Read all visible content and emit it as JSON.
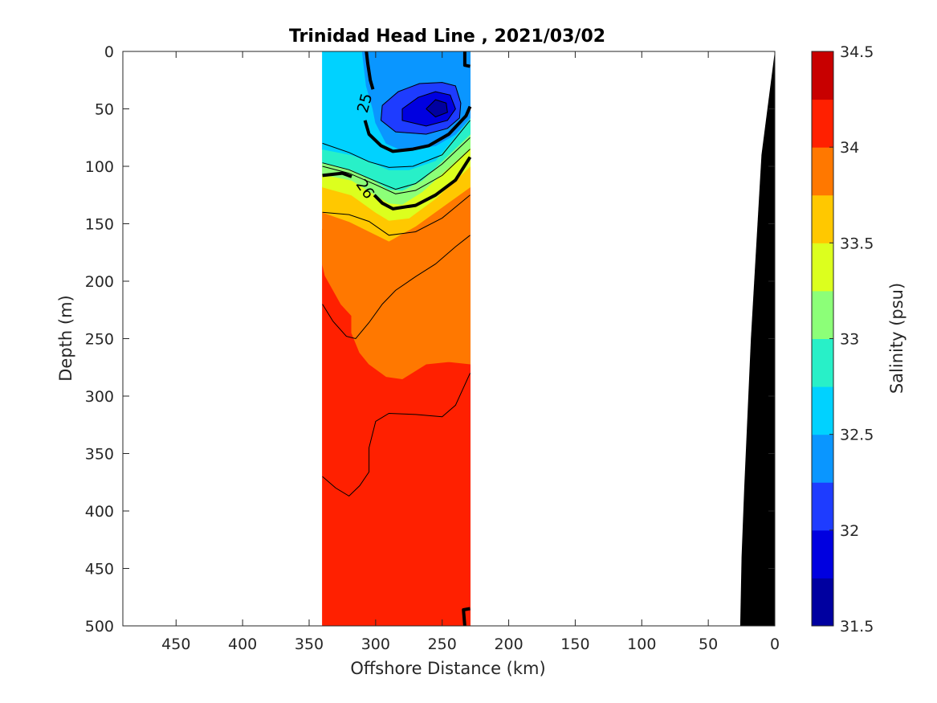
{
  "chart_data": {
    "type": "contour",
    "title": "Trinidad Head Line , 2021/03/02",
    "xlabel": "Offshore Distance (km)",
    "ylabel": "Depth (m)",
    "xlim": [
      490,
      0
    ],
    "ylim": [
      0,
      500
    ],
    "x_reversed": true,
    "y_reversed": true,
    "x_ticks": [
      450,
      400,
      350,
      300,
      250,
      200,
      150,
      100,
      50,
      0
    ],
    "y_ticks": [
      0,
      50,
      100,
      150,
      200,
      250,
      300,
      350,
      400,
      450,
      500
    ],
    "data_extent_x": [
      340,
      229
    ],
    "colorbar": {
      "label": "Salinity (psu)",
      "range": [
        31.5,
        34.5
      ],
      "step": 0.25,
      "ticks": [
        31.5,
        32,
        32.5,
        33,
        33.5,
        34,
        34.5
      ],
      "colors": [
        "#0000a0",
        "#0000e0",
        "#1e3cff",
        "#0a96ff",
        "#00d2ff",
        "#28f0c8",
        "#8cff78",
        "#dcff1e",
        "#ffc800",
        "#ff7800",
        "#ff2000",
        "#c80000"
      ]
    },
    "density_contour_labels": [
      {
        "value": "25",
        "x": 308,
        "y": 45,
        "angle": -75
      },
      {
        "value": "26",
        "x": 308,
        "y": 120,
        "angle": 55
      }
    ],
    "salinity_regions": [
      {
        "value": 34.125,
        "points": [
          [
            340,
            155
          ],
          [
            229,
            155
          ],
          [
            229,
            500
          ],
          [
            340,
            500
          ]
        ]
      },
      {
        "value": 33.875,
        "points": [
          [
            340,
            140
          ],
          [
            320,
            148
          ],
          [
            290,
            158
          ],
          [
            270,
            152
          ],
          [
            229,
            118
          ],
          [
            229,
            272
          ],
          [
            245,
            270
          ],
          [
            262,
            272
          ],
          [
            280,
            285
          ],
          [
            292,
            283
          ],
          [
            305,
            272
          ],
          [
            312,
            262
          ],
          [
            318,
            245
          ],
          [
            318,
            230
          ],
          [
            326,
            220
          ],
          [
            338,
            195
          ],
          [
            340,
            185
          ]
        ]
      },
      {
        "value": 33.625,
        "points": [
          [
            340,
            118
          ],
          [
            318,
            125
          ],
          [
            300,
            140
          ],
          [
            290,
            147
          ],
          [
            275,
            145
          ],
          [
            255,
            128
          ],
          [
            229,
            100
          ],
          [
            229,
            118
          ],
          [
            270,
            152
          ],
          [
            290,
            165
          ],
          [
            320,
            148
          ],
          [
            340,
            140
          ]
        ]
      },
      {
        "value": 33.375,
        "points": [
          [
            340,
            107
          ],
          [
            318,
            112
          ],
          [
            300,
            125
          ],
          [
            290,
            132
          ],
          [
            280,
            133
          ],
          [
            265,
            122
          ],
          [
            229,
            84
          ],
          [
            229,
            100
          ],
          [
            255,
            128
          ],
          [
            275,
            145
          ],
          [
            290,
            147
          ],
          [
            300,
            140
          ],
          [
            318,
            125
          ],
          [
            340,
            118
          ]
        ]
      },
      {
        "value": 33.125,
        "points": [
          [
            340,
            97
          ],
          [
            318,
            103
          ],
          [
            300,
            113
          ],
          [
            290,
            120
          ],
          [
            280,
            121
          ],
          [
            265,
            112
          ],
          [
            229,
            72
          ],
          [
            229,
            84
          ],
          [
            265,
            122
          ],
          [
            280,
            133
          ],
          [
            290,
            132
          ],
          [
            300,
            125
          ],
          [
            318,
            112
          ],
          [
            340,
            107
          ]
        ]
      },
      {
        "value": 32.875,
        "points": [
          [
            340,
            85
          ],
          [
            318,
            90
          ],
          [
            300,
            98
          ],
          [
            290,
            103
          ],
          [
            275,
            103
          ],
          [
            255,
            95
          ],
          [
            229,
            58
          ],
          [
            229,
            72
          ],
          [
            265,
            112
          ],
          [
            280,
            121
          ],
          [
            290,
            120
          ],
          [
            300,
            113
          ],
          [
            318,
            103
          ],
          [
            340,
            97
          ]
        ]
      },
      {
        "value": 32.625,
        "points": [
          [
            340,
            0
          ],
          [
            310,
            0
          ],
          [
            307,
            30
          ],
          [
            302,
            50
          ],
          [
            300,
            62
          ],
          [
            292,
            80
          ],
          [
            280,
            86
          ],
          [
            255,
            82
          ],
          [
            240,
            72
          ],
          [
            229,
            58
          ],
          [
            255,
            95
          ],
          [
            275,
            103
          ],
          [
            290,
            103
          ],
          [
            300,
            98
          ],
          [
            318,
            90
          ],
          [
            340,
            85
          ]
        ]
      },
      {
        "value": 32.375,
        "points": [
          [
            310,
            0
          ],
          [
            229,
            0
          ],
          [
            229,
            58
          ],
          [
            240,
            72
          ],
          [
            255,
            82
          ],
          [
            280,
            86
          ],
          [
            292,
            80
          ],
          [
            300,
            62
          ],
          [
            302,
            50
          ],
          [
            307,
            30
          ]
        ]
      },
      {
        "value": 32.125,
        "points": [
          [
            295,
            47
          ],
          [
            283,
            35
          ],
          [
            267,
            28
          ],
          [
            250,
            27
          ],
          [
            240,
            30
          ],
          [
            236,
            45
          ],
          [
            237,
            58
          ],
          [
            246,
            67
          ],
          [
            262,
            72
          ],
          [
            285,
            70
          ],
          [
            296,
            60
          ]
        ]
      },
      {
        "value": 31.875,
        "points": [
          [
            280,
            50
          ],
          [
            268,
            40
          ],
          [
            255,
            35
          ],
          [
            244,
            38
          ],
          [
            240,
            50
          ],
          [
            246,
            60
          ],
          [
            262,
            65
          ],
          [
            280,
            60
          ]
        ]
      },
      {
        "value": 31.625,
        "points": [
          [
            262,
            50
          ],
          [
            255,
            42
          ],
          [
            247,
            45
          ],
          [
            246,
            53
          ],
          [
            255,
            57
          ]
        ]
      }
    ],
    "thin_contours": [
      [
        [
          340,
          140
        ],
        [
          320,
          142
        ],
        [
          305,
          148
        ],
        [
          290,
          160
        ],
        [
          270,
          157
        ],
        [
          250,
          145
        ],
        [
          229,
          125
        ]
      ],
      [
        [
          340,
          220
        ],
        [
          332,
          235
        ],
        [
          322,
          248
        ],
        [
          315,
          250
        ],
        [
          305,
          236
        ],
        [
          295,
          220
        ],
        [
          285,
          208
        ],
        [
          270,
          196
        ],
        [
          255,
          185
        ],
        [
          240,
          170
        ],
        [
          229,
          160
        ]
      ],
      [
        [
          340,
          370
        ],
        [
          330,
          380
        ],
        [
          320,
          387
        ],
        [
          312,
          378
        ],
        [
          305,
          366
        ],
        [
          305,
          345
        ],
        [
          300,
          322
        ],
        [
          290,
          315
        ],
        [
          270,
          316
        ],
        [
          250,
          318
        ],
        [
          240,
          308
        ],
        [
          229,
          280
        ]
      ],
      [
        [
          340,
          80
        ],
        [
          320,
          88
        ],
        [
          305,
          96
        ],
        [
          290,
          101
        ],
        [
          272,
          100
        ],
        [
          250,
          90
        ],
        [
          229,
          60
        ]
      ],
      [
        [
          340,
          97
        ],
        [
          320,
          103
        ],
        [
          300,
          113
        ],
        [
          285,
          120
        ],
        [
          270,
          115
        ],
        [
          250,
          98
        ],
        [
          229,
          75
        ]
      ],
      [
        [
          340,
          100
        ],
        [
          320,
          106
        ],
        [
          300,
          116
        ],
        [
          285,
          124
        ],
        [
          270,
          121
        ],
        [
          250,
          108
        ],
        [
          229,
          85
        ]
      ],
      [
        [
          295,
          47
        ],
        [
          283,
          35
        ],
        [
          267,
          28
        ],
        [
          250,
          27
        ],
        [
          240,
          30
        ],
        [
          236,
          45
        ],
        [
          237,
          58
        ],
        [
          246,
          67
        ],
        [
          262,
          72
        ],
        [
          285,
          70
        ],
        [
          296,
          60
        ],
        [
          295,
          47
        ]
      ],
      [
        [
          280,
          50
        ],
        [
          268,
          40
        ],
        [
          255,
          35
        ],
        [
          244,
          38
        ],
        [
          240,
          50
        ],
        [
          246,
          60
        ],
        [
          262,
          65
        ],
        [
          280,
          60
        ],
        [
          280,
          50
        ]
      ],
      [
        [
          262,
          50
        ],
        [
          255,
          42
        ],
        [
          247,
          45
        ],
        [
          246,
          53
        ],
        [
          255,
          57
        ],
        [
          262,
          50
        ]
      ]
    ],
    "thick_contours": [
      [
        [
          307,
          0
        ],
        [
          306,
          10
        ],
        [
          304,
          25
        ],
        [
          302,
          33
        ]
      ],
      [
        [
          308,
          60
        ],
        [
          305,
          72
        ],
        [
          296,
          82
        ],
        [
          287,
          87
        ],
        [
          272,
          85
        ],
        [
          260,
          82
        ],
        [
          245,
          72
        ],
        [
          232,
          56
        ],
        [
          229,
          48
        ]
      ],
      [
        [
          340,
          108
        ],
        [
          325,
          106
        ],
        [
          318,
          109
        ]
      ],
      [
        [
          301,
          125
        ],
        [
          295,
          132
        ],
        [
          287,
          137
        ],
        [
          270,
          134
        ],
        [
          255,
          125
        ],
        [
          240,
          112
        ],
        [
          229,
          92
        ]
      ],
      [
        [
          233,
          0
        ],
        [
          233,
          12
        ],
        [
          229,
          13
        ]
      ],
      [
        [
          233,
          500
        ],
        [
          234,
          486
        ],
        [
          229,
          485
        ]
      ]
    ],
    "bathymetry": [
      [
        0,
        0
      ],
      [
        10,
        90
      ],
      [
        18,
        250
      ],
      [
        23,
        380
      ],
      [
        25,
        440
      ],
      [
        26,
        500
      ],
      [
        0,
        500
      ]
    ]
  }
}
